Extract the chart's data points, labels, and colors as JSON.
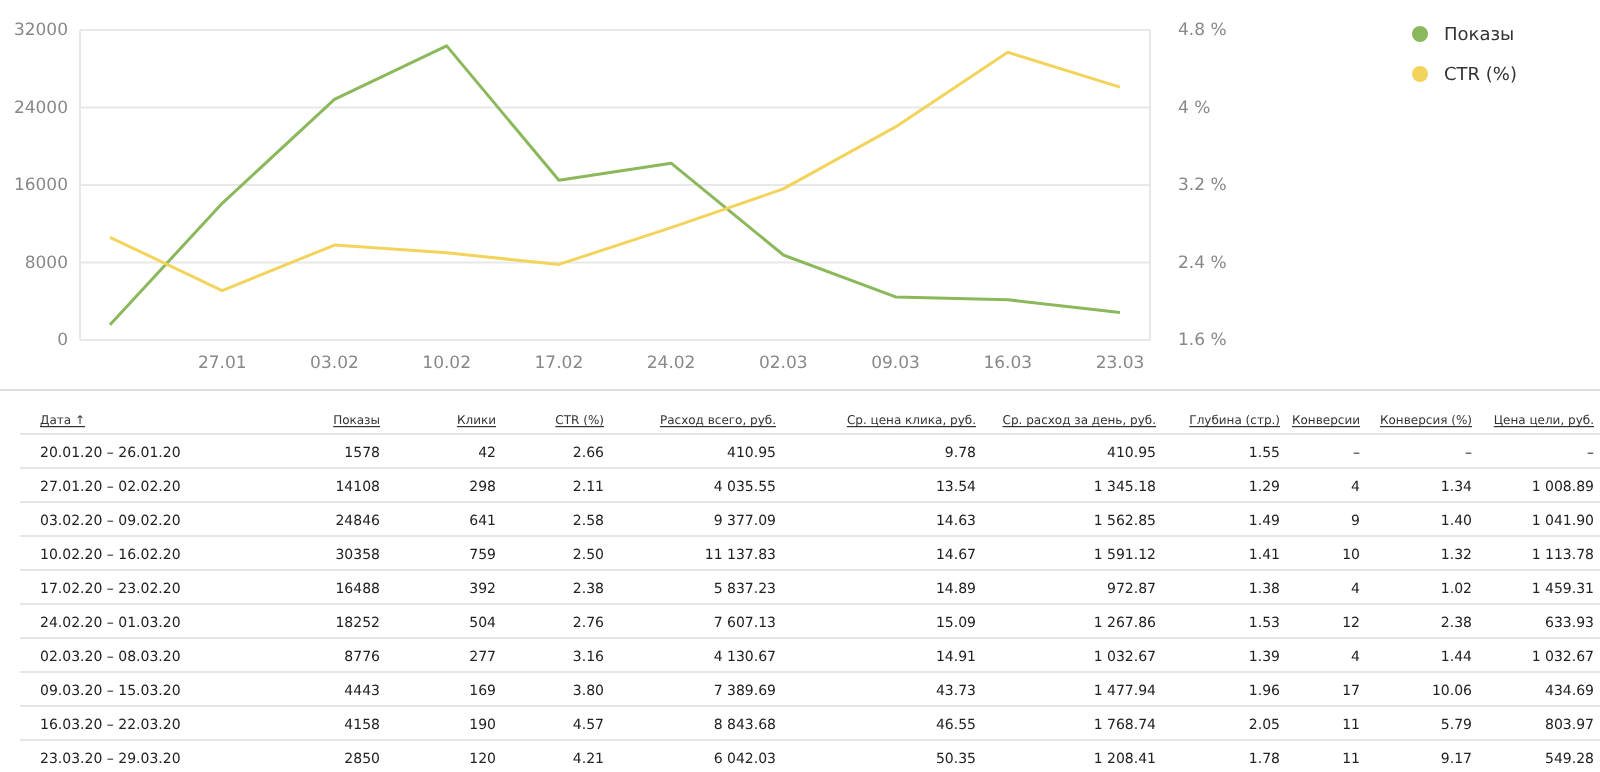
{
  "chart_data": [
    {
      "type": "line",
      "categories": [
        null,
        "27.01",
        "03.02",
        "10.02",
        "17.02",
        "24.02",
        "02.03",
        "09.03",
        "16.03",
        "23.03"
      ],
      "series": [
        {
          "name": "Показы",
          "color": "#8bb85a",
          "values": [
            1578,
            14108,
            24846,
            30358,
            16488,
            18252,
            8776,
            4443,
            4158,
            2850
          ]
        },
        {
          "name": "CTR (%)",
          "color": "#f2d45c",
          "axis": "y2",
          "values": [
            2.66,
            2.11,
            2.58,
            2.5,
            2.38,
            2.76,
            3.16,
            3.8,
            4.57,
            4.21
          ]
        }
      ],
      "ylim": [
        0,
        32000
      ],
      "yticks": [
        0,
        8000,
        16000,
        24000,
        32000
      ],
      "y2lim": [
        1.6,
        4.8
      ],
      "y2ticks": [
        {
          "value": 1.6,
          "label": "1.6 %"
        },
        {
          "value": 2.4,
          "label": "2.4 %"
        },
        {
          "value": 3.2,
          "label": "3.2 %"
        },
        {
          "value": 4,
          "label": "4 %"
        },
        {
          "value": 4.8,
          "label": "4.8 %"
        }
      ],
      "grid": "y",
      "legend": "right",
      "marker": "none",
      "line_style": "solid"
    },
    {
      "type": "other",
      "categories": [
        "Дата ↑",
        "Показы",
        "Клики",
        "CTR (%)",
        "Расход всего, руб.",
        "Ср. цена клика, руб.",
        "Ср. расход за день, руб.",
        "Глубина (стр.)",
        "Конверсии",
        "Конверсия (%)",
        "Цена цели, руб."
      ],
      "cell_labels": [
        [
          "20.01.20 – 26.01.20",
          "1578",
          "42",
          "2.66",
          "410.95",
          "9.78",
          "410.95",
          "1.55",
          "–",
          "–",
          "–"
        ],
        [
          "27.01.20 – 02.02.20",
          "14108",
          "298",
          "2.11",
          "4 035.55",
          "13.54",
          "1 345.18",
          "1.29",
          "4",
          "1.34",
          "1 008.89"
        ],
        [
          "03.02.20 – 09.02.20",
          "24846",
          "641",
          "2.58",
          "9 377.09",
          "14.63",
          "1 562.85",
          "1.49",
          "9",
          "1.40",
          "1 041.90"
        ],
        [
          "10.02.20 – 16.02.20",
          "30358",
          "759",
          "2.50",
          "11 137.83",
          "14.67",
          "1 591.12",
          "1.41",
          "10",
          "1.32",
          "1 113.78"
        ],
        [
          "17.02.20 – 23.02.20",
          "16488",
          "392",
          "2.38",
          "5 837.23",
          "14.89",
          "972.87",
          "1.38",
          "4",
          "1.02",
          "1 459.31"
        ],
        [
          "24.02.20 – 01.03.20",
          "18252",
          "504",
          "2.76",
          "7 607.13",
          "15.09",
          "1 267.86",
          "1.53",
          "12",
          "2.38",
          "633.93"
        ],
        [
          "02.03.20 – 08.03.20",
          "8776",
          "277",
          "3.16",
          "4 130.67",
          "14.91",
          "1 032.67",
          "1.39",
          "4",
          "1.44",
          "1 032.67"
        ],
        [
          "09.03.20 – 15.03.20",
          "4443",
          "169",
          "3.80",
          "7 389.69",
          "43.73",
          "1 477.94",
          "1.96",
          "17",
          "10.06",
          "434.69"
        ],
        [
          "16.03.20 – 22.03.20",
          "4158",
          "190",
          "4.57",
          "8 843.68",
          "46.55",
          "1 768.74",
          "2.05",
          "11",
          "5.79",
          "803.97"
        ],
        [
          "23.03.20 – 29.03.20",
          "2850",
          "120",
          "4.21",
          "6 042.03",
          "50.35",
          "1 208.41",
          "1.78",
          "11",
          "9.17",
          "549.28"
        ]
      ]
    }
  ]
}
